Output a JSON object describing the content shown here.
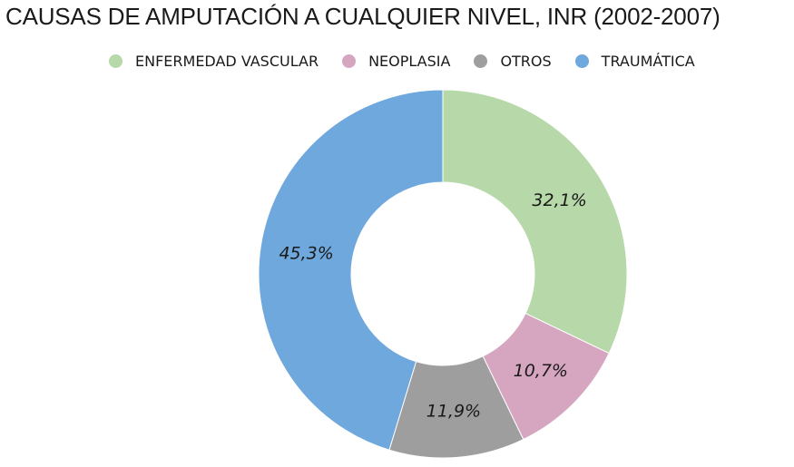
{
  "chart_data": {
    "type": "pie",
    "title": "CAUSAS DE AMPUTACIÓN A CUALQUIER NIVEL, INR (2002-2007)",
    "categories": [
      "ENFERMEDAD VASCULAR",
      "NEOPLASIA",
      "OTROS",
      "TRAUMÁTICA"
    ],
    "values": [
      32.1,
      10.7,
      11.9,
      45.3
    ],
    "data_labels": [
      "32,1%",
      "10,7%",
      "11,9%",
      "45,3%"
    ],
    "colors": [
      "#b7d8a8",
      "#d6a6c0",
      "#9e9e9e",
      "#6fa8dc"
    ],
    "donut": true,
    "legend_position": "top"
  }
}
